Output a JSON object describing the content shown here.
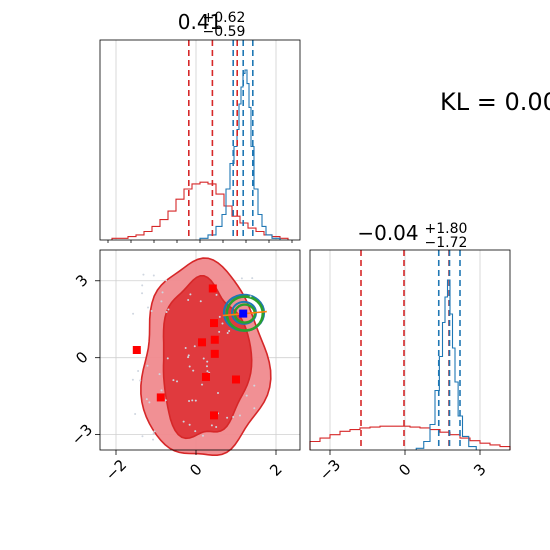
{
  "chart_data": [
    {
      "type": "line",
      "panel": "top-left marginal histogram",
      "title_main": "0.41",
      "title_sup": "+0.62",
      "title_sub": "−0.59",
      "xlim": [
        -2.4,
        2.6
      ],
      "grid": true,
      "series": [
        {
          "color": "#d62728",
          "x": [
            -2.0,
            -1.8,
            -1.6,
            -1.4,
            -1.2,
            -1.0,
            -0.8,
            -0.6,
            -0.4,
            -0.2,
            0.0,
            0.2,
            0.4,
            0.6,
            0.8,
            1.0,
            1.2,
            1.4,
            1.6,
            1.8,
            2.0,
            2.2
          ],
          "y": [
            0.01,
            0.01,
            0.02,
            0.03,
            0.05,
            0.08,
            0.12,
            0.17,
            0.24,
            0.3,
            0.33,
            0.34,
            0.33,
            0.27,
            0.2,
            0.14,
            0.1,
            0.07,
            0.05,
            0.03,
            0.02,
            0.01
          ]
        },
        {
          "color": "#1f77b4",
          "x": [
            0.2,
            0.4,
            0.6,
            0.7,
            0.8,
            0.9,
            1.0,
            1.05,
            1.1,
            1.15,
            1.2,
            1.25,
            1.3,
            1.35,
            1.4,
            1.5,
            1.6,
            1.7,
            1.8,
            2.0
          ],
          "y": [
            0.01,
            0.03,
            0.08,
            0.15,
            0.3,
            0.45,
            0.55,
            0.65,
            0.8,
            0.9,
            0.98,
            1.0,
            0.92,
            0.78,
            0.55,
            0.3,
            0.15,
            0.08,
            0.03,
            0.01
          ]
        }
      ],
      "quantile_lines": [
        {
          "color": "#d62728",
          "x": [
            -0.18,
            0.41,
            1.03
          ]
        },
        {
          "color": "#1f77b4",
          "x": [
            0.93,
            1.18,
            1.42
          ]
        }
      ]
    },
    {
      "type": "line",
      "panel": "bottom-right marginal histogram",
      "title_main": "−0.04",
      "title_sup": "+1.80",
      "title_sub": "−1.72",
      "xlim": [
        -3.8,
        4.2
      ],
      "xticks": [
        -3,
        0,
        3
      ],
      "xtick_labels": [
        "−3",
        "0",
        "3"
      ],
      "grid": true,
      "series": [
        {
          "color": "#d62728",
          "x": [
            -3.6,
            -3.2,
            -2.8,
            -2.4,
            -2.0,
            -1.6,
            -1.2,
            -0.8,
            -0.4,
            0.0,
            0.4,
            0.8,
            1.2,
            1.6,
            2.0,
            2.4,
            2.8,
            3.2,
            3.6,
            4.0
          ],
          "y": [
            0.05,
            0.07,
            0.09,
            0.11,
            0.12,
            0.13,
            0.135,
            0.14,
            0.14,
            0.14,
            0.135,
            0.13,
            0.12,
            0.105,
            0.09,
            0.07,
            0.055,
            0.04,
            0.03,
            0.02
          ]
        },
        {
          "color": "#1f77b4",
          "x": [
            0.6,
            0.9,
            1.1,
            1.3,
            1.45,
            1.55,
            1.65,
            1.75,
            1.85,
            1.95,
            2.05,
            2.2,
            2.4,
            2.7
          ],
          "y": [
            0.01,
            0.05,
            0.15,
            0.35,
            0.55,
            0.75,
            0.9,
            1.0,
            0.8,
            0.6,
            0.4,
            0.2,
            0.08,
            0.02
          ]
        }
      ],
      "quantile_lines": [
        {
          "color": "#d62728",
          "x": [
            -1.76,
            -0.04,
            1.76
          ]
        },
        {
          "color": "#1f77b4",
          "x": [
            1.35,
            1.78,
            2.2
          ]
        }
      ]
    },
    {
      "type": "scatter",
      "panel": "bottom-left 2D joint contour",
      "xlim": [
        -2.4,
        2.6
      ],
      "ylim": [
        -3.6,
        4.2
      ],
      "xticks": [
        -2,
        0,
        2
      ],
      "xtick_labels": [
        "−2",
        "0",
        "2"
      ],
      "yticks": [
        -3,
        0,
        3
      ],
      "ytick_labels": [
        "−3",
        "0",
        "3"
      ],
      "grid": true,
      "red_contour_levels": [
        "outer",
        "inner"
      ],
      "red_points": [
        {
          "x": 0.42,
          "y": 2.7
        },
        {
          "x": 0.45,
          "y": 1.35
        },
        {
          "x": 0.47,
          "y": 0.7
        },
        {
          "x": 0.15,
          "y": 0.6
        },
        {
          "x": 0.47,
          "y": 0.15
        },
        {
          "x": 0.25,
          "y": -0.75
        },
        {
          "x": 1.0,
          "y": -0.85
        },
        {
          "x": 0.45,
          "y": -2.25
        },
        {
          "x": -0.88,
          "y": -1.55
        },
        {
          "x": -1.48,
          "y": 0.3
        }
      ],
      "blue_point": {
        "x": 1.18,
        "y": 1.72
      },
      "blue_contour_center": {
        "x": 1.2,
        "y": 1.75
      },
      "green_contour_center": {
        "x": 1.22,
        "y": 1.72
      }
    }
  ],
  "kl_text": "KL = 0.00"
}
